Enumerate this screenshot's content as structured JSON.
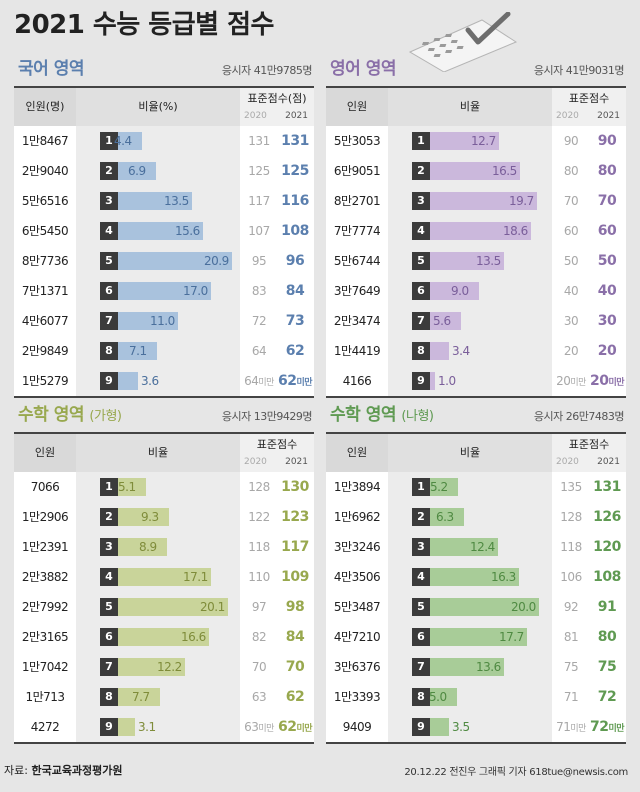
{
  "title": "2021 수능 등급별 점수",
  "decoration_icon": "answer-sheet-check-icon",
  "footer": {
    "source_label": "자료: ",
    "source": "한국교육과정평가원",
    "credit": "20.12.22 전진우 그래픽 기자 618tue@newsis.com"
  },
  "chart_data": [
    {
      "type": "bar",
      "title": "국어 영역",
      "subtitle": "",
      "test_takers": "응시자 41만9785명",
      "accent_color": "#5b7fae",
      "bar_color": "#a9c2dd",
      "label_color": "#4a6f9c",
      "headers": {
        "people": "인원(명)",
        "ratio": "비율(%)",
        "score": "표준점수(점)",
        "year_prev": "2020",
        "year_curr": "2021"
      },
      "xlim": [
        0,
        22
      ],
      "rows": [
        {
          "grade": "1",
          "people": "1만8467",
          "ratio": 4.4,
          "ratio_label": "4.4",
          "score_2020": "131",
          "score_2020_suffix": "",
          "score_2021": "131",
          "score_2021_suffix": ""
        },
        {
          "grade": "2",
          "people": "2만9040",
          "ratio": 6.9,
          "ratio_label": "6.9",
          "score_2020": "125",
          "score_2020_suffix": "",
          "score_2021": "125",
          "score_2021_suffix": ""
        },
        {
          "grade": "3",
          "people": "5만6516",
          "ratio": 13.5,
          "ratio_label": "13.5",
          "score_2020": "117",
          "score_2020_suffix": "",
          "score_2021": "116",
          "score_2021_suffix": ""
        },
        {
          "grade": "4",
          "people": "6만5450",
          "ratio": 15.6,
          "ratio_label": "15.6",
          "score_2020": "107",
          "score_2020_suffix": "",
          "score_2021": "108",
          "score_2021_suffix": ""
        },
        {
          "grade": "5",
          "people": "8만7736",
          "ratio": 20.9,
          "ratio_label": "20.9",
          "score_2020": "95",
          "score_2020_suffix": "",
          "score_2021": "96",
          "score_2021_suffix": ""
        },
        {
          "grade": "6",
          "people": "7만1371",
          "ratio": 17.0,
          "ratio_label": "17.0",
          "score_2020": "83",
          "score_2020_suffix": "",
          "score_2021": "84",
          "score_2021_suffix": ""
        },
        {
          "grade": "7",
          "people": "4만6077",
          "ratio": 11.0,
          "ratio_label": "11.0",
          "score_2020": "72",
          "score_2020_suffix": "",
          "score_2021": "73",
          "score_2021_suffix": ""
        },
        {
          "grade": "8",
          "people": "2만9849",
          "ratio": 7.1,
          "ratio_label": "7.1",
          "score_2020": "64",
          "score_2020_suffix": "",
          "score_2021": "62",
          "score_2021_suffix": ""
        },
        {
          "grade": "9",
          "people": "1만5279",
          "ratio": 3.6,
          "ratio_label": "3.6",
          "score_2020": "64",
          "score_2020_suffix": "미만",
          "score_2021": "62",
          "score_2021_suffix": "미만"
        }
      ]
    },
    {
      "type": "bar",
      "title": "영어 영역",
      "subtitle": "",
      "test_takers": "응시자 41만9031명",
      "accent_color": "#8a6fa8",
      "bar_color": "#cbb8dc",
      "label_color": "#7a5e9a",
      "headers": {
        "people": "인원",
        "ratio": "비율",
        "score": "표준점수",
        "year_prev": "2020",
        "year_curr": "2021"
      },
      "xlim": [
        0,
        22
      ],
      "rows": [
        {
          "grade": "1",
          "people": "5만3053",
          "ratio": 12.7,
          "ratio_label": "12.7",
          "score_2020": "90",
          "score_2020_suffix": "",
          "score_2021": "90",
          "score_2021_suffix": ""
        },
        {
          "grade": "2",
          "people": "6만9051",
          "ratio": 16.5,
          "ratio_label": "16.5",
          "score_2020": "80",
          "score_2020_suffix": "",
          "score_2021": "80",
          "score_2021_suffix": ""
        },
        {
          "grade": "3",
          "people": "8만2701",
          "ratio": 19.7,
          "ratio_label": "19.7",
          "score_2020": "70",
          "score_2020_suffix": "",
          "score_2021": "70",
          "score_2021_suffix": ""
        },
        {
          "grade": "4",
          "people": "7만7774",
          "ratio": 18.6,
          "ratio_label": "18.6",
          "score_2020": "60",
          "score_2020_suffix": "",
          "score_2021": "60",
          "score_2021_suffix": ""
        },
        {
          "grade": "5",
          "people": "5만6744",
          "ratio": 13.5,
          "ratio_label": "13.5",
          "score_2020": "50",
          "score_2020_suffix": "",
          "score_2021": "50",
          "score_2021_suffix": ""
        },
        {
          "grade": "6",
          "people": "3만7649",
          "ratio": 9.0,
          "ratio_label": "9.0",
          "score_2020": "40",
          "score_2020_suffix": "",
          "score_2021": "40",
          "score_2021_suffix": ""
        },
        {
          "grade": "7",
          "people": "2만3474",
          "ratio": 5.6,
          "ratio_label": "5.6",
          "score_2020": "30",
          "score_2020_suffix": "",
          "score_2021": "30",
          "score_2021_suffix": ""
        },
        {
          "grade": "8",
          "people": "1만4419",
          "ratio": 3.4,
          "ratio_label": "3.4",
          "score_2020": "20",
          "score_2020_suffix": "",
          "score_2021": "20",
          "score_2021_suffix": ""
        },
        {
          "grade": "9",
          "people": "4166",
          "ratio": 1.0,
          "ratio_label": "1.0",
          "score_2020": "20",
          "score_2020_suffix": "미만",
          "score_2021": "20",
          "score_2021_suffix": "미만"
        }
      ]
    },
    {
      "type": "bar",
      "title": "수학 영역",
      "subtitle": "(가형)",
      "test_takers": "응시자 13만9429명",
      "accent_color": "#98a84e",
      "bar_color": "#c9d49a",
      "label_color": "#7f8c3a",
      "headers": {
        "people": "인원",
        "ratio": "비율",
        "score": "표준점수",
        "year_prev": "2020",
        "year_curr": "2021"
      },
      "xlim": [
        0,
        22
      ],
      "rows": [
        {
          "grade": "1",
          "people": "7066",
          "ratio": 5.1,
          "ratio_label": "5.1",
          "score_2020": "128",
          "score_2020_suffix": "",
          "score_2021": "130",
          "score_2021_suffix": ""
        },
        {
          "grade": "2",
          "people": "1만2906",
          "ratio": 9.3,
          "ratio_label": "9.3",
          "score_2020": "122",
          "score_2020_suffix": "",
          "score_2021": "123",
          "score_2021_suffix": ""
        },
        {
          "grade": "3",
          "people": "1만2391",
          "ratio": 8.9,
          "ratio_label": "8.9",
          "score_2020": "118",
          "score_2020_suffix": "",
          "score_2021": "117",
          "score_2021_suffix": ""
        },
        {
          "grade": "4",
          "people": "2만3882",
          "ratio": 17.1,
          "ratio_label": "17.1",
          "score_2020": "110",
          "score_2020_suffix": "",
          "score_2021": "109",
          "score_2021_suffix": ""
        },
        {
          "grade": "5",
          "people": "2만7992",
          "ratio": 20.1,
          "ratio_label": "20.1",
          "score_2020": "97",
          "score_2020_suffix": "",
          "score_2021": "98",
          "score_2021_suffix": ""
        },
        {
          "grade": "6",
          "people": "2만3165",
          "ratio": 16.6,
          "ratio_label": "16.6",
          "score_2020": "82",
          "score_2020_suffix": "",
          "score_2021": "84",
          "score_2021_suffix": ""
        },
        {
          "grade": "7",
          "people": "1만7042",
          "ratio": 12.2,
          "ratio_label": "12.2",
          "score_2020": "70",
          "score_2020_suffix": "",
          "score_2021": "70",
          "score_2021_suffix": ""
        },
        {
          "grade": "8",
          "people": "1만713",
          "ratio": 7.7,
          "ratio_label": "7.7",
          "score_2020": "63",
          "score_2020_suffix": "",
          "score_2021": "62",
          "score_2021_suffix": ""
        },
        {
          "grade": "9",
          "people": "4272",
          "ratio": 3.1,
          "ratio_label": "3.1",
          "score_2020": "63",
          "score_2020_suffix": "미만",
          "score_2021": "62",
          "score_2021_suffix": "미만"
        }
      ]
    },
    {
      "type": "bar",
      "title": "수학 영역",
      "subtitle": "(나형)",
      "test_takers": "응시자 26만7483명",
      "accent_color": "#5f9a52",
      "bar_color": "#a8cc98",
      "label_color": "#4f8a42",
      "headers": {
        "people": "인원",
        "ratio": "비율",
        "score": "표준점수",
        "year_prev": "2020",
        "year_curr": "2021"
      },
      "xlim": [
        0,
        22
      ],
      "rows": [
        {
          "grade": "1",
          "people": "1만3894",
          "ratio": 5.2,
          "ratio_label": "5.2",
          "score_2020": "135",
          "score_2020_suffix": "",
          "score_2021": "131",
          "score_2021_suffix": ""
        },
        {
          "grade": "2",
          "people": "1만6962",
          "ratio": 6.3,
          "ratio_label": "6.3",
          "score_2020": "128",
          "score_2020_suffix": "",
          "score_2021": "126",
          "score_2021_suffix": ""
        },
        {
          "grade": "3",
          "people": "3만3246",
          "ratio": 12.4,
          "ratio_label": "12.4",
          "score_2020": "118",
          "score_2020_suffix": "",
          "score_2021": "120",
          "score_2021_suffix": ""
        },
        {
          "grade": "4",
          "people": "4만3506",
          "ratio": 16.3,
          "ratio_label": "16.3",
          "score_2020": "106",
          "score_2020_suffix": "",
          "score_2021": "108",
          "score_2021_suffix": ""
        },
        {
          "grade": "5",
          "people": "5만3487",
          "ratio": 20.0,
          "ratio_label": "20.0",
          "score_2020": "92",
          "score_2020_suffix": "",
          "score_2021": "91",
          "score_2021_suffix": ""
        },
        {
          "grade": "6",
          "people": "4만7210",
          "ratio": 17.7,
          "ratio_label": "17.7",
          "score_2020": "81",
          "score_2020_suffix": "",
          "score_2021": "80",
          "score_2021_suffix": ""
        },
        {
          "grade": "7",
          "people": "3만6376",
          "ratio": 13.6,
          "ratio_label": "13.6",
          "score_2020": "75",
          "score_2020_suffix": "",
          "score_2021": "75",
          "score_2021_suffix": ""
        },
        {
          "grade": "8",
          "people": "1만3393",
          "ratio": 5.0,
          "ratio_label": "5.0",
          "score_2020": "71",
          "score_2020_suffix": "",
          "score_2021": "72",
          "score_2021_suffix": ""
        },
        {
          "grade": "9",
          "people": "9409",
          "ratio": 3.5,
          "ratio_label": "3.5",
          "score_2020": "71",
          "score_2020_suffix": "미만",
          "score_2021": "72",
          "score_2021_suffix": "미만"
        }
      ]
    }
  ]
}
